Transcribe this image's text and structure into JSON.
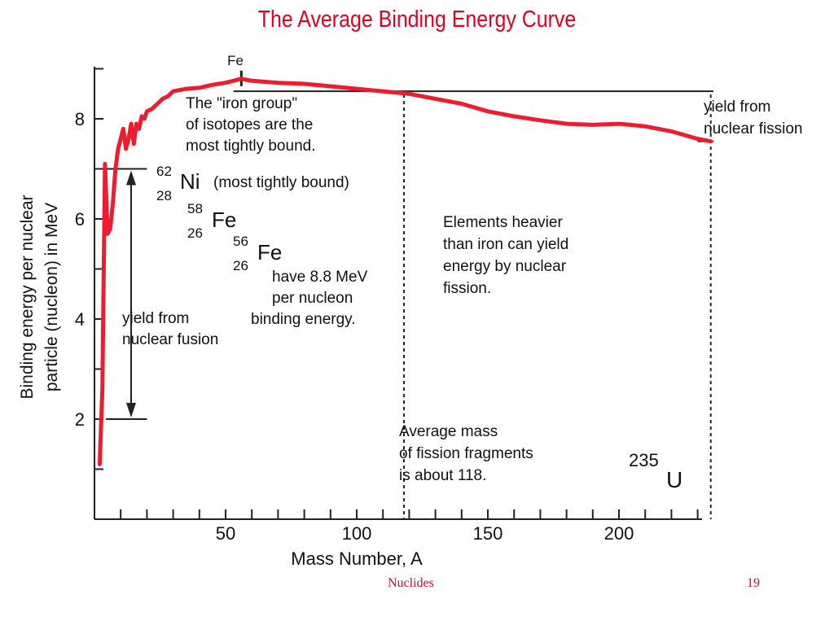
{
  "slide": {
    "title": "The Average Binding Energy Curve",
    "footer_left": "Nuclides",
    "footer_right": "19"
  },
  "chart_data": {
    "type": "line",
    "title": "",
    "xlabel": "Mass Number, A",
    "ylabel": "Binding energy per nuclear particle (nucleon) in MeV",
    "xlim": [
      0,
      240
    ],
    "ylim": [
      0,
      9.2
    ],
    "x_ticks": [
      "50",
      "100",
      "150",
      "200"
    ],
    "y_ticks": [
      "2",
      "4",
      "6",
      "8"
    ],
    "grid": false,
    "series": [
      {
        "color": "#ee1c2e",
        "x": [
          2,
          3,
          4,
          5,
          6,
          7,
          8,
          9,
          10,
          11,
          12,
          13,
          14,
          15,
          16,
          17,
          18,
          19,
          20,
          22,
          24,
          26,
          28,
          30,
          35,
          40,
          45,
          50,
          56,
          60,
          70,
          80,
          90,
          100,
          110,
          120,
          130,
          140,
          150,
          160,
          170,
          180,
          190,
          200,
          210,
          220,
          230,
          235
        ],
        "y": [
          1.1,
          2.6,
          7.1,
          5.7,
          5.8,
          6.3,
          7.0,
          7.4,
          7.6,
          7.8,
          7.4,
          7.6,
          7.9,
          7.5,
          7.9,
          7.8,
          8.05,
          8.0,
          8.15,
          8.2,
          8.3,
          8.4,
          8.45,
          8.55,
          8.6,
          8.62,
          8.68,
          8.72,
          8.8,
          8.76,
          8.72,
          8.7,
          8.65,
          8.6,
          8.55,
          8.5,
          8.4,
          8.3,
          8.15,
          8.05,
          7.97,
          7.9,
          7.88,
          7.9,
          7.85,
          7.75,
          7.6,
          7.55
        ]
      }
    ],
    "reference_lines": {
      "fission_level": 8.55,
      "fusion_top": 7.0,
      "fusion_bottom": 2.0,
      "average_fragment_mass": 118,
      "uranium_mass": 235,
      "uranium_energy": 7.55,
      "iron_mass": 56,
      "iron_energy": 8.8
    },
    "annotations": {
      "fe_peak": "Fe",
      "iron_group": [
        "The \"iron group\"",
        "of isotopes are the",
        "most tightly bound."
      ],
      "ni62": {
        "mass": "62",
        "atomic": "28",
        "symbol": "Ni",
        "note": "(most tightly bound)"
      },
      "fe58": {
        "mass": "58",
        "atomic": "26",
        "symbol": "Fe"
      },
      "fe56": {
        "mass": "56",
        "atomic": "26",
        "symbol": "Fe"
      },
      "binding_note": [
        "have 8.8 MeV",
        "per nucleon",
        "binding energy."
      ],
      "fusion": [
        "yield from",
        "nuclear fusion"
      ],
      "fission": [
        "yield from",
        "nuclear fission"
      ],
      "heavier": [
        "Elements heavier",
        "than iron can yield",
        "energy by nuclear",
        "fission."
      ],
      "fragments": [
        "Average mass",
        "of fission fragments",
        "is about 118."
      ],
      "u235": {
        "mass": "235",
        "symbol": "U"
      }
    }
  }
}
